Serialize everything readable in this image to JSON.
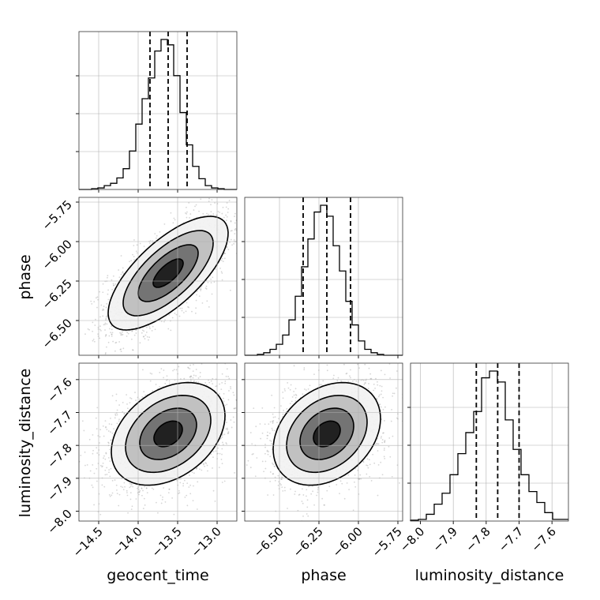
{
  "chart_data": {
    "type": "corner",
    "parameters": [
      "geocent_time",
      "phase",
      "luminosity_distance"
    ],
    "axis_labels": {
      "geocent_time": "geocent_time",
      "phase": "phase",
      "luminosity_distance": "luminosity_distance"
    },
    "ranges": {
      "geocent_time": [
        -14.75,
        -12.75
      ],
      "phase": [
        -6.72,
        -5.72
      ],
      "luminosity_distance": [
        -8.03,
        -7.55
      ]
    },
    "ticks": {
      "geocent_time": [
        -14.5,
        -14.0,
        -13.5,
        -13.0
      ],
      "phase": [
        -6.5,
        -6.25,
        -6.0,
        -5.75
      ],
      "luminosity_distance": [
        -8.0,
        -7.9,
        -7.8,
        -7.7,
        -7.6
      ]
    },
    "tick_labels": {
      "geocent_time": [
        "−14.5",
        "−14.0",
        "−13.5",
        "−13.0"
      ],
      "phase": [
        "−6.50",
        "−6.25",
        "−6.00",
        "−5.75"
      ],
      "luminosity_distance": [
        "−8.0",
        "−7.9",
        "−7.8",
        "−7.7",
        "−7.6"
      ]
    },
    "quantiles": {
      "geocent_time": [
        -13.85,
        -13.62,
        -13.38
      ],
      "phase": [
        -6.35,
        -6.2,
        -6.05
      ],
      "luminosity_distance": [
        -7.83,
        -7.765,
        -7.7
      ]
    },
    "histograms": {
      "geocent_time": {
        "edges_range": [
          -14.75,
          -12.75
        ],
        "counts": [
          0,
          0,
          1,
          2,
          5,
          8,
          15,
          27,
          50,
          85,
          118,
          145,
          180,
          195,
          188,
          148,
          100,
          58,
          30,
          14,
          5,
          2,
          1,
          0,
          0
        ]
      },
      "phase": {
        "edges_range": [
          -6.72,
          -5.72
        ],
        "counts": [
          0,
          0,
          1,
          3,
          7,
          13,
          24,
          42,
          70,
          105,
          138,
          170,
          178,
          165,
          130,
          100,
          64,
          36,
          17,
          7,
          3,
          1,
          0,
          0,
          0
        ]
      },
      "luminosity_distance": {
        "edges_range": [
          -8.03,
          -7.55
        ],
        "counts": [
          1,
          2,
          8,
          20,
          33,
          55,
          80,
          105,
          130,
          170,
          178,
          165,
          120,
          85,
          55,
          35,
          22,
          10,
          2,
          2
        ]
      }
    },
    "densities_2d": [
      {
        "x": "geocent_time",
        "y": "phase",
        "mean": [
          -13.62,
          -6.2
        ],
        "std": [
          0.38,
          0.18
        ],
        "correlation": 0.7
      },
      {
        "x": "geocent_time",
        "y": "luminosity_distance",
        "mean": [
          -13.62,
          -7.765
        ],
        "std": [
          0.36,
          0.078
        ],
        "correlation": 0.35
      },
      {
        "x": "phase",
        "y": "luminosity_distance",
        "mean": [
          -6.2,
          -7.765
        ],
        "std": [
          0.17,
          0.078
        ],
        "correlation": 0.3
      }
    ],
    "contour_levels_sigma": [
      0.5,
      1.0,
      1.5,
      2.0
    ]
  }
}
